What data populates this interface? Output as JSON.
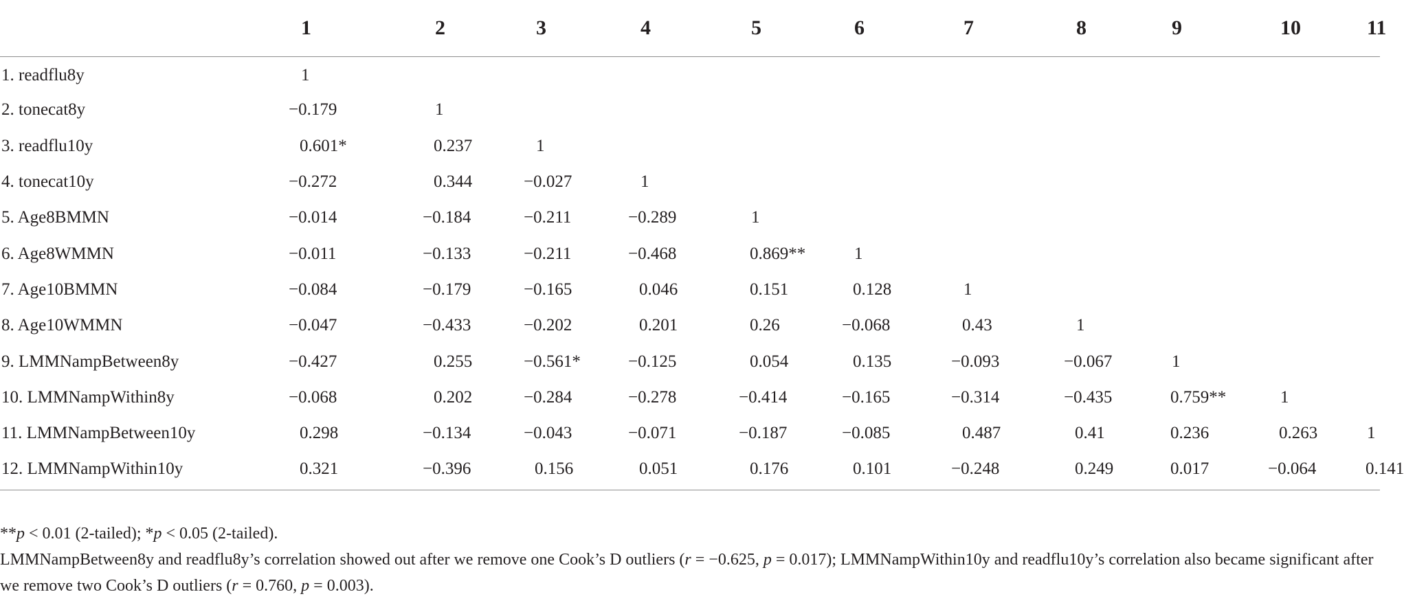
{
  "table": {
    "columns": [
      "",
      "1",
      "2",
      "3",
      "4",
      "5",
      "6",
      "7",
      "8",
      "9",
      "10",
      "11"
    ],
    "rows": [
      {
        "label": "1. readflu8y",
        "cells": [
          "1",
          "",
          "",
          "",
          "",
          "",
          "",
          "",
          "",
          "",
          ""
        ]
      },
      {
        "label": "2. tonecat8y",
        "cells": [
          "−0.179",
          "1",
          "",
          "",
          "",
          "",
          "",
          "",
          "",
          "",
          ""
        ]
      },
      {
        "label": "3. readflu10y",
        "cells": [
          "0.601*",
          "0.237",
          "1",
          "",
          "",
          "",
          "",
          "",
          "",
          "",
          ""
        ]
      },
      {
        "label": "4. tonecat10y",
        "cells": [
          "−0.272",
          "0.344",
          "−0.027",
          "1",
          "",
          "",
          "",
          "",
          "",
          "",
          ""
        ]
      },
      {
        "label": "5. Age8BMMN",
        "cells": [
          "−0.014",
          "−0.184",
          "−0.211",
          "−0.289",
          "1",
          "",
          "",
          "",
          "",
          "",
          ""
        ]
      },
      {
        "label": "6. Age8WMMN",
        "cells": [
          "−0.011",
          "−0.133",
          "−0.211",
          "−0.468",
          "0.869**",
          "1",
          "",
          "",
          "",
          "",
          ""
        ]
      },
      {
        "label": "7. Age10BMMN",
        "cells": [
          "−0.084",
          "−0.179",
          "−0.165",
          "0.046",
          "0.151",
          "0.128",
          "1",
          "",
          "",
          "",
          ""
        ]
      },
      {
        "label": "8. Age10WMMN",
        "cells": [
          "−0.047",
          "−0.433",
          "−0.202",
          "0.201",
          "0.26",
          "−0.068",
          "0.43",
          "1",
          "",
          "",
          ""
        ]
      },
      {
        "label": "9. LMMNampBetween8y",
        "cells": [
          "−0.427",
          "0.255",
          "−0.561*",
          "−0.125",
          "0.054",
          "0.135",
          "−0.093",
          "−0.067",
          "1",
          "",
          ""
        ]
      },
      {
        "label": "10. LMMNampWithin8y",
        "cells": [
          "−0.068",
          "0.202",
          "−0.284",
          "−0.278",
          "−0.414",
          "−0.165",
          "−0.314",
          "−0.435",
          "0.759**",
          "1",
          ""
        ]
      },
      {
        "label": "11. LMMNampBetween10y",
        "cells": [
          "0.298",
          "−0.134",
          "−0.043",
          "−0.071",
          "−0.187",
          "−0.085",
          "0.487",
          "0.41",
          "0.236",
          "0.263",
          "1"
        ]
      },
      {
        "label": "12. LMMNampWithin10y",
        "cells": [
          "0.321",
          "−0.396",
          "0.156",
          "0.051",
          "0.176",
          "0.101",
          "−0.248",
          "0.249",
          "0.017",
          "−0.064",
          "0.141"
        ]
      }
    ]
  },
  "notes": {
    "significance": {
      "p1": "p",
      "t1": " < 0.01 (2-tailed); *",
      "p2": "p",
      "t2": " < 0.05 (2-tailed).",
      "prefix": "**"
    },
    "outliers": {
      "t1": "LMMNampBetween8y and readflu8y’s correlation showed out after we remove one Cook’s D outliers (",
      "r1": "r",
      "t2": " = −0.625, ",
      "p1": "p",
      "t3": " = 0.017); LMMNampWithin10y and readflu10y’s correlation also became significant after we remove two Cook’s D outliers (",
      "r2": "r",
      "t4": " = 0.760, ",
      "p2": "p",
      "t5": " = 0.003)."
    }
  }
}
